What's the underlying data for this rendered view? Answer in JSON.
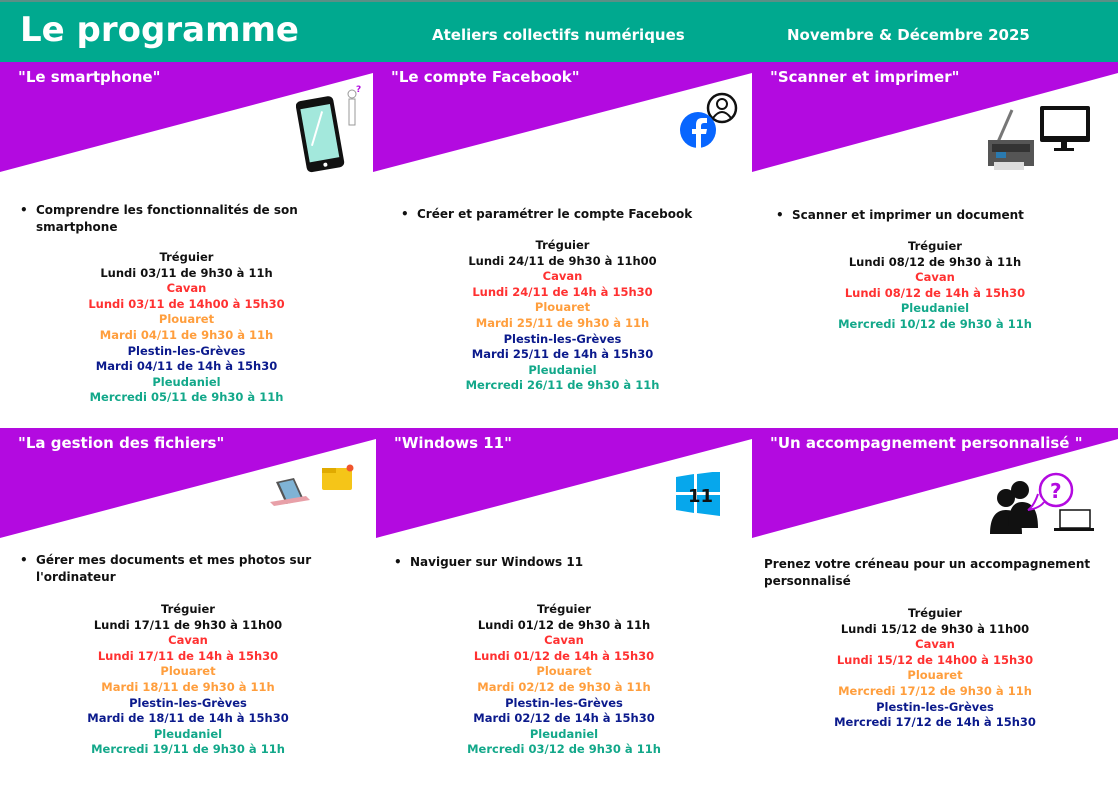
{
  "header": {
    "title": "Le programme",
    "subtitle": "Ateliers collectifs numériques",
    "period": "Novembre & Décembre 2025"
  },
  "colors": {
    "header": "#00a98f",
    "purple": "#b30ae0",
    "Tréguier": "#111111",
    "Cavan": "#ff3131",
    "Plouaret": "#ff9e3d",
    "Plestin-les-Grèves": "#0b1a8c",
    "Pleudaniel": "#13a88a"
  },
  "panels": [
    {
      "title": "\"Le smartphone\"",
      "icon": "smartphone-icon",
      "bullet": "Comprendre les fonctionnalités de son smartphone",
      "bulleted": true,
      "sessions": [
        [
          "Tréguier",
          "Lundi 03/11 de 9h30 à 11h"
        ],
        [
          "Cavan",
          "Lundi 03/11 de 14h00 à 15h30"
        ],
        [
          "Plouaret",
          "Mardi 04/11 de 9h30 à 11h"
        ],
        [
          "Plestin-les-Grèves",
          "Mardi 04/11 de 14h à 15h30"
        ],
        [
          "Pleudaniel",
          "Mercredi 05/11 de 9h30 à 11h"
        ]
      ]
    },
    {
      "title": "\"Le compte Facebook\"",
      "icon": "facebook-icon",
      "bullet": "Créer et paramétrer le compte Facebook",
      "bulleted": true,
      "sessions": [
        [
          "Tréguier",
          "Lundi 24/11 de 9h30 à 11h00"
        ],
        [
          "Cavan",
          "Lundi 24/11 de 14h à 15h30"
        ],
        [
          "Plouaret",
          "Mardi 25/11 de 9h30 à 11h"
        ],
        [
          "Plestin-les-Grèves",
          "Mardi 25/11 de 14h à 15h30"
        ],
        [
          "Pleudaniel",
          "Mercredi 26/11 de 9h30 à 11h"
        ]
      ]
    },
    {
      "title": "\"Scanner et imprimer\"",
      "icon": "printer-icon",
      "bullet": "Scanner et imprimer un document",
      "bulleted": true,
      "sessions": [
        [
          "Tréguier",
          "Lundi 08/12 de 9h30 à 11h"
        ],
        [
          "Cavan",
          "Lundi 08/12 de 14h à 15h30"
        ],
        [
          "Pleudaniel",
          "Mercredi 10/12 de 9h30 à 11h"
        ]
      ]
    },
    {
      "title": "\"La gestion des fichiers\"",
      "icon": "laptop-folder-icon",
      "bullet": "Gérer mes documents et mes photos sur l'ordinateur",
      "bulleted": true,
      "sessions": [
        [
          "Tréguier",
          "Lundi 17/11 de 9h30 à 11h00"
        ],
        [
          "Cavan",
          "Lundi 17/11 de 14h à 15h30"
        ],
        [
          "Plouaret",
          "Mardi 18/11 de 9h30 à 11h"
        ],
        [
          "Plestin-les-Grèves",
          "Mardi  de 18/11 de 14h à 15h30"
        ],
        [
          "Pleudaniel",
          "Mercredi 19/11 de 9h30 à 11h"
        ]
      ]
    },
    {
      "title": "\"Windows 11\"",
      "icon": "windows-icon",
      "icon_text": "11",
      "bullet": "Naviguer sur Windows 11",
      "bulleted": true,
      "sessions": [
        [
          "Tréguier",
          "Lundi 01/12 de 9h30 à 11h"
        ],
        [
          "Cavan",
          "Lundi 01/12 de 14h à 15h30"
        ],
        [
          "Plouaret",
          "Mardi 02/12 de 9h30 à 11h"
        ],
        [
          "Plestin-les-Grèves",
          "Mardi 02/12 de 14h à 15h30"
        ],
        [
          "Pleudaniel",
          "Mercredi 03/12 de 9h30 à 11h"
        ]
      ]
    },
    {
      "title": "\"Un accompagnement personnalisé \"",
      "icon": "people-chat-icon",
      "bullet": "Prenez votre créneau pour un accompagnement personnalisé",
      "bulleted": false,
      "sessions": [
        [
          "Tréguier",
          "Lundi 15/12 de 9h30 à 11h00"
        ],
        [
          "Cavan",
          "Lundi 15/12 de 14h00 à 15h30"
        ],
        [
          "Plouaret",
          "Mercredi 17/12 de 9h30 à 11h"
        ],
        [
          "Plestin-les-Grèves",
          "Mercredi 17/12 de 14h à 15h30"
        ]
      ]
    }
  ]
}
